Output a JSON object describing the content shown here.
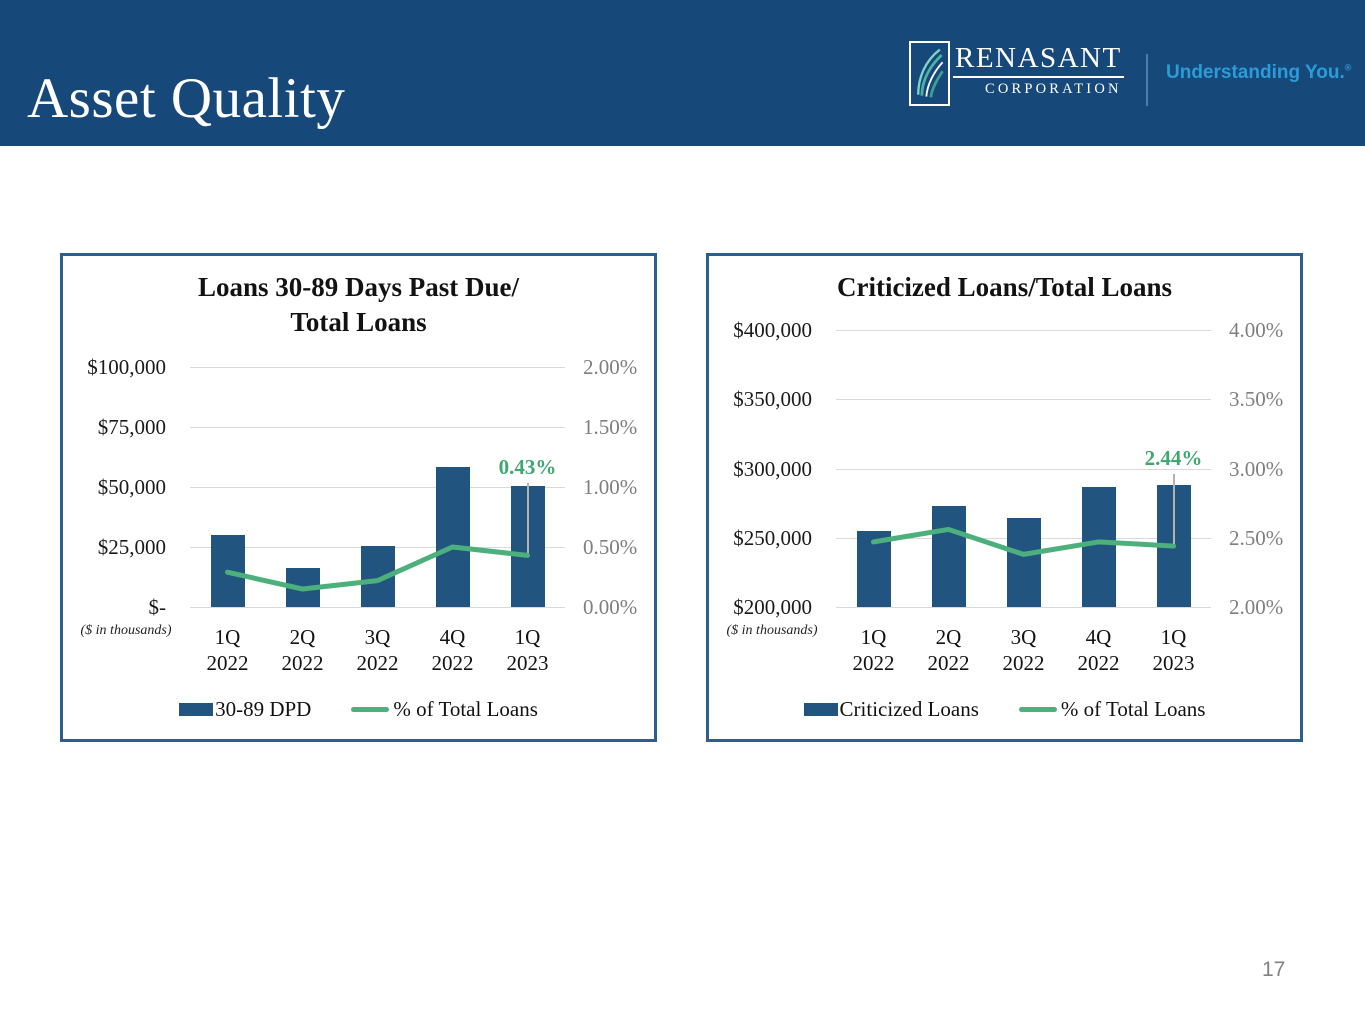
{
  "header": {
    "title": "Asset Quality",
    "logo": {
      "name": "RENASANT",
      "subtitle": "CORPORATION"
    },
    "tagline": "Understanding You.",
    "registered_mark": "®"
  },
  "footer": {
    "page_number": "17"
  },
  "colors": {
    "header_navy": "#17487a",
    "card_border": "#2d5f8e",
    "bar_blue": "#21547e",
    "line_green": "#4cb07c",
    "callout_green": "#3fa76f",
    "gridline_gray": "#d9d9d9",
    "right_axis_gray": "#7f7f7f",
    "tagline_blue": "#2b9cd8"
  },
  "chart_data": [
    {
      "type": "bar",
      "subtype": "bar+line-dual-axis",
      "title_lines": [
        "Loans 30-89 Days Past Due/",
        "Total Loans"
      ],
      "categories": [
        "1Q 2022",
        "2Q 2022",
        "3Q 2022",
        "4Q 2022",
        "1Q 2023"
      ],
      "series": [
        {
          "name": "30-89 DPD",
          "type": "bar",
          "axis": "left",
          "values": [
            30000,
            16200,
            25500,
            58500,
            50500
          ]
        },
        {
          "name": "% of Total Loans",
          "type": "line",
          "axis": "right",
          "values": [
            0.29,
            0.15,
            0.22,
            0.5,
            0.43
          ]
        }
      ],
      "left_axis": {
        "ticks": [
          "$100,000",
          "$75,000",
          "$50,000",
          "$25,000",
          "$-"
        ],
        "min": 0,
        "max": 100000
      },
      "right_axis": {
        "ticks": [
          "2.00%",
          "1.50%",
          "1.00%",
          "0.50%",
          "0.00%"
        ],
        "min": 0,
        "max": 2.0
      },
      "callout": {
        "text": "0.43%",
        "point_index": 4
      },
      "note": "($ in thousands)",
      "legend": [
        "30-89 DPD",
        "% of Total Loans"
      ],
      "grid": true,
      "legend_position": "bottom"
    },
    {
      "type": "bar",
      "subtype": "bar+line-dual-axis",
      "title_lines": [
        "Criticized Loans/Total Loans"
      ],
      "categories": [
        "1Q 2022",
        "2Q 2022",
        "3Q 2022",
        "4Q 2022",
        "1Q 2023"
      ],
      "series": [
        {
          "name": "Criticized Loans",
          "type": "bar",
          "axis": "left",
          "values": [
            255000,
            273000,
            264000,
            287000,
            288000
          ]
        },
        {
          "name": "% of Total Loans",
          "type": "line",
          "axis": "right",
          "values": [
            2.47,
            2.56,
            2.38,
            2.47,
            2.44
          ]
        }
      ],
      "left_axis": {
        "ticks": [
          "$400,000",
          "$350,000",
          "$300,000",
          "$250,000",
          "$200,000"
        ],
        "min": 200000,
        "max": 400000
      },
      "right_axis": {
        "ticks": [
          "4.00%",
          "3.50%",
          "3.00%",
          "2.50%",
          "2.00%"
        ],
        "min": 2.0,
        "max": 4.0
      },
      "callout": {
        "text": "2.44%",
        "point_index": 4
      },
      "note": "($ in thousands)",
      "legend": [
        "Criticized Loans",
        "% of Total Loans"
      ],
      "grid": true,
      "legend_position": "bottom"
    }
  ]
}
